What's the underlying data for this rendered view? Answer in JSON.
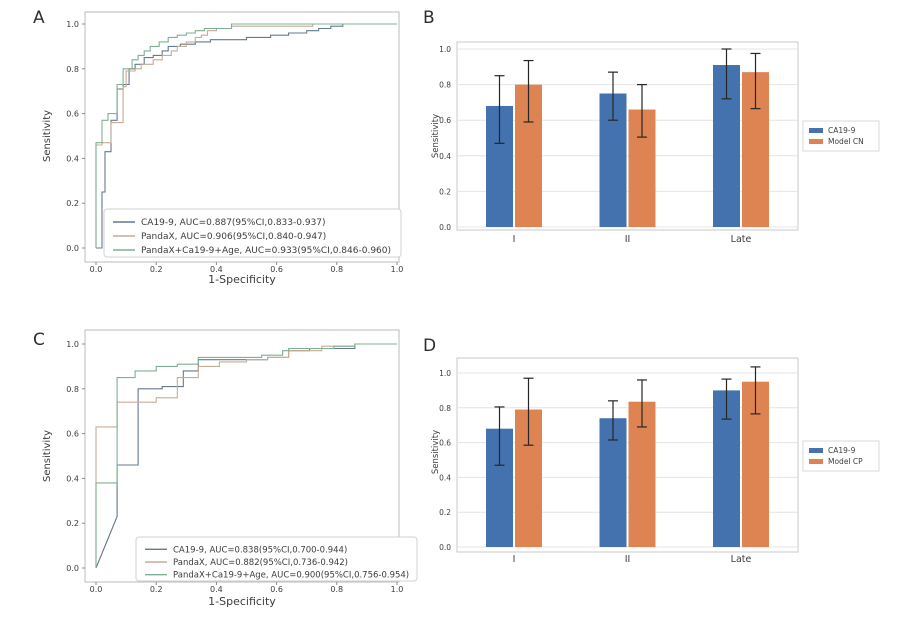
{
  "figure": {
    "background": "#ffffff",
    "text_color": "#3c3c3c"
  },
  "chart_data": [
    {
      "panel": "A",
      "type": "line",
      "subtype": "roc-curve",
      "xlabel": "1-Specificity",
      "ylabel": "Sensitivity",
      "xlim": [
        0.0,
        1.0
      ],
      "ylim": [
        0.0,
        1.0
      ],
      "xticks": [
        "0.0",
        "0.2",
        "0.4",
        "0.6",
        "0.8",
        "1.0"
      ],
      "yticks": [
        "0.0",
        "0.2",
        "0.4",
        "0.6",
        "0.8",
        "1.0"
      ],
      "grid": false,
      "legend_position": "lower right",
      "series": [
        {
          "name": "CA19-9, AUC=0.887(95%CI,0.833-0.937)",
          "color": "#64798d",
          "points": [
            [
              0,
              0
            ],
            [
              0.02,
              0
            ],
            [
              0.02,
              0.25
            ],
            [
              0.03,
              0.25
            ],
            [
              0.03,
              0.43
            ],
            [
              0.05,
              0.43
            ],
            [
              0.05,
              0.57
            ],
            [
              0.07,
              0.57
            ],
            [
              0.07,
              0.71
            ],
            [
              0.09,
              0.71
            ],
            [
              0.09,
              0.73
            ],
            [
              0.11,
              0.73
            ],
            [
              0.11,
              0.8
            ],
            [
              0.13,
              0.8
            ],
            [
              0.13,
              0.82
            ],
            [
              0.16,
              0.82
            ],
            [
              0.16,
              0.85
            ],
            [
              0.19,
              0.85
            ],
            [
              0.19,
              0.86
            ],
            [
              0.22,
              0.86
            ],
            [
              0.22,
              0.88
            ],
            [
              0.24,
              0.88
            ],
            [
              0.24,
              0.9
            ],
            [
              0.28,
              0.9
            ],
            [
              0.28,
              0.91
            ],
            [
              0.33,
              0.91
            ],
            [
              0.33,
              0.92
            ],
            [
              0.38,
              0.92
            ],
            [
              0.38,
              0.93
            ],
            [
              0.5,
              0.93
            ],
            [
              0.5,
              0.94
            ],
            [
              0.58,
              0.94
            ],
            [
              0.58,
              0.95
            ],
            [
              0.64,
              0.95
            ],
            [
              0.64,
              0.96
            ],
            [
              0.7,
              0.96
            ],
            [
              0.7,
              0.97
            ],
            [
              0.74,
              0.97
            ],
            [
              0.74,
              0.98
            ],
            [
              0.78,
              0.98
            ],
            [
              0.78,
              0.99
            ],
            [
              0.82,
              0.99
            ],
            [
              0.82,
              1
            ],
            [
              1,
              1
            ]
          ]
        },
        {
          "name": "PandaX, AUC=0.906(95%CI,0.840-0.947)",
          "color": "#c6ac96",
          "points": [
            [
              0,
              0
            ],
            [
              0,
              0.46
            ],
            [
              0.02,
              0.46
            ],
            [
              0.02,
              0.47
            ],
            [
              0.05,
              0.47
            ],
            [
              0.05,
              0.56
            ],
            [
              0.09,
              0.56
            ],
            [
              0.09,
              0.72
            ],
            [
              0.1,
              0.72
            ],
            [
              0.1,
              0.79
            ],
            [
              0.13,
              0.79
            ],
            [
              0.13,
              0.8
            ],
            [
              0.15,
              0.8
            ],
            [
              0.15,
              0.82
            ],
            [
              0.19,
              0.82
            ],
            [
              0.19,
              0.84
            ],
            [
              0.22,
              0.84
            ],
            [
              0.22,
              0.86
            ],
            [
              0.25,
              0.86
            ],
            [
              0.25,
              0.88
            ],
            [
              0.27,
              0.88
            ],
            [
              0.27,
              0.9
            ],
            [
              0.3,
              0.9
            ],
            [
              0.3,
              0.92
            ],
            [
              0.33,
              0.92
            ],
            [
              0.33,
              0.94
            ],
            [
              0.35,
              0.94
            ],
            [
              0.35,
              0.95
            ],
            [
              0.37,
              0.95
            ],
            [
              0.37,
              0.97
            ],
            [
              0.4,
              0.97
            ],
            [
              0.4,
              0.98
            ],
            [
              0.45,
              0.98
            ],
            [
              0.45,
              0.99
            ],
            [
              0.72,
              0.99
            ],
            [
              0.72,
              1
            ],
            [
              1,
              1
            ]
          ]
        },
        {
          "name": "PandaX+Ca19-9+Age, AUC=0.933(95%CI,0.846-0.960)",
          "color": "#7fb093",
          "points": [
            [
              0,
              0
            ],
            [
              0,
              0.47
            ],
            [
              0.02,
              0.47
            ],
            [
              0.02,
              0.57
            ],
            [
              0.04,
              0.57
            ],
            [
              0.04,
              0.6
            ],
            [
              0.07,
              0.6
            ],
            [
              0.07,
              0.73
            ],
            [
              0.09,
              0.73
            ],
            [
              0.09,
              0.8
            ],
            [
              0.12,
              0.8
            ],
            [
              0.12,
              0.84
            ],
            [
              0.14,
              0.84
            ],
            [
              0.14,
              0.86
            ],
            [
              0.16,
              0.86
            ],
            [
              0.16,
              0.88
            ],
            [
              0.18,
              0.88
            ],
            [
              0.18,
              0.9
            ],
            [
              0.21,
              0.9
            ],
            [
              0.21,
              0.92
            ],
            [
              0.24,
              0.92
            ],
            [
              0.24,
              0.94
            ],
            [
              0.27,
              0.94
            ],
            [
              0.27,
              0.95
            ],
            [
              0.3,
              0.95
            ],
            [
              0.3,
              0.96
            ],
            [
              0.33,
              0.96
            ],
            [
              0.33,
              0.97
            ],
            [
              0.36,
              0.97
            ],
            [
              0.36,
              0.98
            ],
            [
              0.45,
              0.98
            ],
            [
              0.45,
              1
            ],
            [
              1,
              1
            ]
          ]
        }
      ]
    },
    {
      "panel": "B",
      "type": "bar",
      "categories": [
        "I",
        "II",
        "Late"
      ],
      "xlabel": "",
      "ylabel": "Sensitivity",
      "ylim": [
        0.0,
        1.04
      ],
      "yticks": [
        "0.0",
        "0.2",
        "0.4",
        "0.6",
        "0.8",
        "1.0"
      ],
      "grid": true,
      "legend_position": "center right outside",
      "series": [
        {
          "name": "CA19-9",
          "color": "#4472af",
          "values": [
            0.68,
            0.75,
            0.91
          ],
          "err_low": [
            0.47,
            0.6,
            0.72
          ],
          "err_high": [
            0.85,
            0.87,
            1.0
          ]
        },
        {
          "name": "Model CN",
          "color": "#dd8452",
          "values": [
            0.8,
            0.66,
            0.87
          ],
          "err_low": [
            0.59,
            0.505,
            0.665
          ],
          "err_high": [
            0.935,
            0.8,
            0.975
          ]
        }
      ]
    },
    {
      "panel": "C",
      "type": "line",
      "subtype": "roc-curve",
      "xlabel": "1-Specificity",
      "ylabel": "Sensitivity",
      "xlim": [
        0.0,
        1.0
      ],
      "ylim": [
        0.0,
        1.0
      ],
      "xticks": [
        "0.0",
        "0.2",
        "0.4",
        "0.6",
        "0.8",
        "1.0"
      ],
      "yticks": [
        "0.0",
        "0.2",
        "0.4",
        "0.6",
        "0.8",
        "1.0"
      ],
      "grid": false,
      "legend_position": "lower right",
      "series": [
        {
          "name": "CA19-9, AUC=0.838(95%CI,0.700-0.944)",
          "color": "#64798d",
          "points": [
            [
              0,
              0
            ],
            [
              0.07,
              0.23
            ],
            [
              0.07,
              0.46
            ],
            [
              0.14,
              0.46
            ],
            [
              0.14,
              0.8
            ],
            [
              0.22,
              0.8
            ],
            [
              0.22,
              0.81
            ],
            [
              0.29,
              0.81
            ],
            [
              0.29,
              0.88
            ],
            [
              0.34,
              0.88
            ],
            [
              0.34,
              0.93
            ],
            [
              0.57,
              0.93
            ],
            [
              0.57,
              0.94
            ],
            [
              0.64,
              0.94
            ],
            [
              0.64,
              0.97
            ],
            [
              0.71,
              0.97
            ],
            [
              0.71,
              0.98
            ],
            [
              0.86,
              0.98
            ],
            [
              0.86,
              1
            ],
            [
              1,
              1
            ]
          ]
        },
        {
          "name": "PandaX, AUC=0.882(95%CI,0.736-0.942)",
          "color": "#c6ac96",
          "points": [
            [
              0,
              0
            ],
            [
              0,
              0.63
            ],
            [
              0.07,
              0.63
            ],
            [
              0.07,
              0.74
            ],
            [
              0.2,
              0.74
            ],
            [
              0.2,
              0.76
            ],
            [
              0.27,
              0.76
            ],
            [
              0.27,
              0.85
            ],
            [
              0.34,
              0.85
            ],
            [
              0.34,
              0.9
            ],
            [
              0.41,
              0.9
            ],
            [
              0.41,
              0.92
            ],
            [
              0.5,
              0.92
            ],
            [
              0.5,
              0.93
            ],
            [
              0.57,
              0.93
            ],
            [
              0.57,
              0.94
            ],
            [
              0.64,
              0.94
            ],
            [
              0.64,
              0.97
            ],
            [
              0.75,
              0.97
            ],
            [
              0.75,
              0.99
            ],
            [
              0.86,
              0.99
            ],
            [
              0.86,
              1
            ],
            [
              1,
              1
            ]
          ]
        },
        {
          "name": "PandaX+Ca19-9+Age, AUC=0.900(95%CI,0.756-0.954)",
          "color": "#7fb093",
          "points": [
            [
              0,
              0
            ],
            [
              0,
              0.38
            ],
            [
              0.07,
              0.38
            ],
            [
              0.07,
              0.85
            ],
            [
              0.13,
              0.85
            ],
            [
              0.13,
              0.88
            ],
            [
              0.2,
              0.88
            ],
            [
              0.2,
              0.9
            ],
            [
              0.27,
              0.9
            ],
            [
              0.27,
              0.91
            ],
            [
              0.34,
              0.91
            ],
            [
              0.34,
              0.94
            ],
            [
              0.55,
              0.94
            ],
            [
              0.55,
              0.95
            ],
            [
              0.62,
              0.95
            ],
            [
              0.62,
              0.97
            ],
            [
              0.64,
              0.97
            ],
            [
              0.64,
              0.98
            ],
            [
              0.79,
              0.98
            ],
            [
              0.79,
              0.99
            ],
            [
              0.86,
              0.99
            ],
            [
              0.86,
              1
            ],
            [
              1,
              1
            ]
          ]
        }
      ]
    },
    {
      "panel": "D",
      "type": "bar",
      "categories": [
        "I",
        "II",
        "Late"
      ],
      "xlabel": "",
      "ylabel": "Sensitivity",
      "ylim": [
        0.0,
        1.09
      ],
      "yticks": [
        "0.0",
        "0.2",
        "0.4",
        "0.6",
        "0.8",
        "1.0"
      ],
      "grid": true,
      "legend_position": "center right outside",
      "series": [
        {
          "name": "CA19-9",
          "color": "#4472af",
          "values": [
            0.68,
            0.74,
            0.9
          ],
          "err_low": [
            0.47,
            0.615,
            0.735
          ],
          "err_high": [
            0.805,
            0.84,
            0.965
          ]
        },
        {
          "name": "Model CP",
          "color": "#dd8452",
          "values": [
            0.79,
            0.835,
            0.95
          ],
          "err_low": [
            0.585,
            0.69,
            0.765
          ],
          "err_high": [
            0.97,
            0.96,
            1.035
          ]
        }
      ]
    }
  ]
}
